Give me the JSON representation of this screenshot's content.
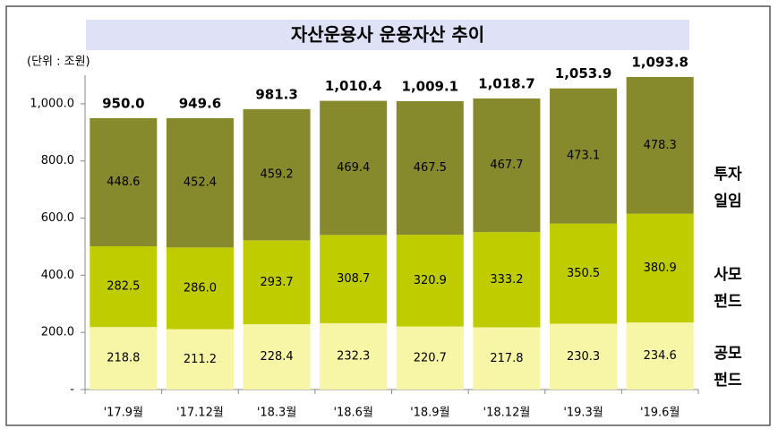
{
  "chart_data": {
    "type": "stacked_bar",
    "title": "자산운용사 운용자산 추이",
    "unit": "(단위 : 조원)",
    "categories": [
      "'17.9월",
      "'17.12월",
      "'18.3월",
      "'18.6월",
      "'18.9월",
      "'18.12월",
      "'19.3월",
      "'19.6월"
    ],
    "series": [
      {
        "name": "공모\n펀드",
        "color": "#f6f6a6",
        "values": [
          218.8,
          211.2,
          228.4,
          232.3,
          220.7,
          217.8,
          230.3,
          234.6
        ],
        "value_labels": [
          "218.8",
          "211.2",
          "228.4",
          "232.3",
          "220.7",
          "217.8",
          "230.3",
          "234.6"
        ]
      },
      {
        "name": "사모\n펀드",
        "color": "#bfcc00",
        "values": [
          282.5,
          286.0,
          293.7,
          308.7,
          320.9,
          333.2,
          350.5,
          380.9
        ],
        "value_labels": [
          "282.5",
          "286.0",
          "293.7",
          "308.7",
          "320.9",
          "333.2",
          "350.5",
          "380.9"
        ]
      },
      {
        "name": "투자\n일임",
        "color": "#878a2c",
        "values": [
          448.6,
          452.4,
          459.2,
          469.4,
          467.5,
          467.7,
          473.1,
          478.3
        ],
        "value_labels": [
          "448.6",
          "452.4",
          "459.2",
          "469.4",
          "467.5",
          "467.7",
          "473.1",
          "478.3"
        ]
      }
    ],
    "totals": {
      "values": [
        950.0,
        949.6,
        981.3,
        1010.4,
        1009.1,
        1018.7,
        1053.9,
        1093.8
      ],
      "value_labels": [
        "950.0",
        "949.6",
        "981.3",
        "1,010.4",
        "1,009.1",
        "1,018.7",
        "1,053.9",
        "1,093.8"
      ]
    },
    "ylim": [
      0,
      1100
    ],
    "yticks": [
      {
        "value": 0,
        "label": "-"
      },
      {
        "value": 200,
        "label": "200.0"
      },
      {
        "value": 400,
        "label": "400.0"
      },
      {
        "value": 600,
        "label": "600.0"
      },
      {
        "value": 800,
        "label": "800.0"
      },
      {
        "value": 1000,
        "label": "1,000.0"
      }
    ]
  }
}
